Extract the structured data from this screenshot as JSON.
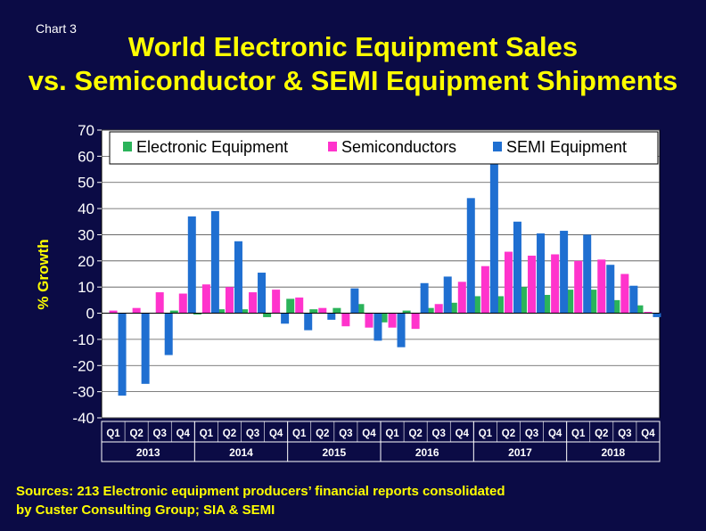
{
  "chart_label": "Chart 3",
  "title_line1": "World Electronic Equipment Sales",
  "title_line2": "vs. Semiconductor & SEMI Equipment Shipments",
  "source_line1": "Sources: 213 Electronic equipment producers’ financial reports consolidated",
  "source_line2": "by Custer Consulting Group; SIA & SEMI",
  "colors": {
    "background": "#0b0b45",
    "electronic": "#2bb35a",
    "semiconductors": "#ff33cc",
    "semi_equipment": "#1f6fd1"
  },
  "chart_data": {
    "type": "bar",
    "ylabel": "% Growth",
    "ylim": [
      -40,
      70
    ],
    "yticks": [
      70,
      60,
      50,
      40,
      30,
      20,
      10,
      0,
      -10,
      -20,
      -30,
      -40
    ],
    "grid": true,
    "legend_position": "top",
    "categories": [
      "Q1",
      "Q2",
      "Q3",
      "Q4",
      "Q1",
      "Q2",
      "Q3",
      "Q4",
      "Q1",
      "Q2",
      "Q3",
      "Q4",
      "Q1",
      "Q2",
      "Q3",
      "Q4",
      "Q1",
      "Q2",
      "Q3",
      "Q4",
      "Q1",
      "Q2",
      "Q3",
      "Q4"
    ],
    "years": [
      "2013",
      "2014",
      "2015",
      "2016",
      "2017",
      "2018"
    ],
    "series": [
      {
        "name": "Electronic Equipment",
        "color": "#2bb35a",
        "values": [
          0,
          0,
          0,
          1,
          -0.5,
          1.5,
          1.5,
          -1.5,
          5.5,
          1.5,
          2,
          3.5,
          -3.5,
          1,
          2,
          4,
          6.5,
          6.5,
          10,
          7,
          9,
          9,
          5,
          3
        ]
      },
      {
        "name": "Semiconductors",
        "color": "#ff33cc",
        "values": [
          1,
          2,
          8,
          7.5,
          11,
          10,
          8,
          9,
          6,
          2,
          -5,
          -5.5,
          -5.5,
          -6,
          3.5,
          12,
          18,
          23.5,
          22,
          22.5,
          20,
          20.5,
          15,
          0.5
        ]
      },
      {
        "name": "SEMI Equipment",
        "color": "#1f6fd1",
        "values": [
          -31.5,
          -27,
          -16,
          37,
          39,
          27.5,
          15.5,
          -4,
          -6.5,
          -2.5,
          9.5,
          -10.5,
          -13,
          11.5,
          14,
          44,
          57,
          35,
          30.5,
          31.5,
          30,
          18.5,
          10.5,
          -1.5
        ]
      }
    ]
  }
}
